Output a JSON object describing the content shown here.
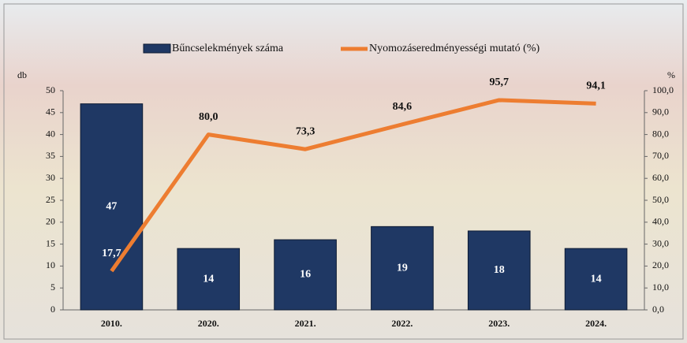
{
  "chart_data": {
    "type": "bar_line",
    "categories": [
      "2010.",
      "2020.",
      "2021.",
      "2022.",
      "2023.",
      "2024."
    ],
    "series": [
      {
        "name": "Bűncselekmények száma",
        "color": "#1f3864",
        "type": "bar",
        "values": [
          47,
          14,
          16,
          19,
          18,
          14
        ]
      },
      {
        "name": "Nyomozáseredményességi mutató (%)",
        "color": "#ed7d31",
        "type": "line",
        "axis": "y2",
        "values": [
          17.7,
          80.0,
          73.3,
          84.6,
          95.7,
          94.1
        ],
        "value_labels": [
          "17,7",
          "80,0",
          "73,3",
          "84,6",
          "95,7",
          "94,1"
        ]
      }
    ],
    "y_label": "db",
    "y2_label": "%",
    "ylim": [
      0,
      50
    ],
    "yticks": [
      0,
      5,
      10,
      15,
      20,
      25,
      30,
      35,
      40,
      45,
      50
    ],
    "y2lim": [
      0,
      100
    ],
    "y2ticks": [
      {
        "value": 0,
        "label": "0,0"
      },
      {
        "value": 10,
        "label": "10,0"
      },
      {
        "value": 20,
        "label": "20,0"
      },
      {
        "value": 30,
        "label": "30,0"
      },
      {
        "value": 40,
        "label": "40,0"
      },
      {
        "value": 50,
        "label": "50,0"
      },
      {
        "value": 60,
        "label": "60,0"
      },
      {
        "value": 70,
        "label": "70,0"
      },
      {
        "value": 80,
        "label": "80,0"
      },
      {
        "value": 90,
        "label": "90,0"
      },
      {
        "value": 100,
        "label": "100,0"
      }
    ],
    "legend": "top"
  }
}
